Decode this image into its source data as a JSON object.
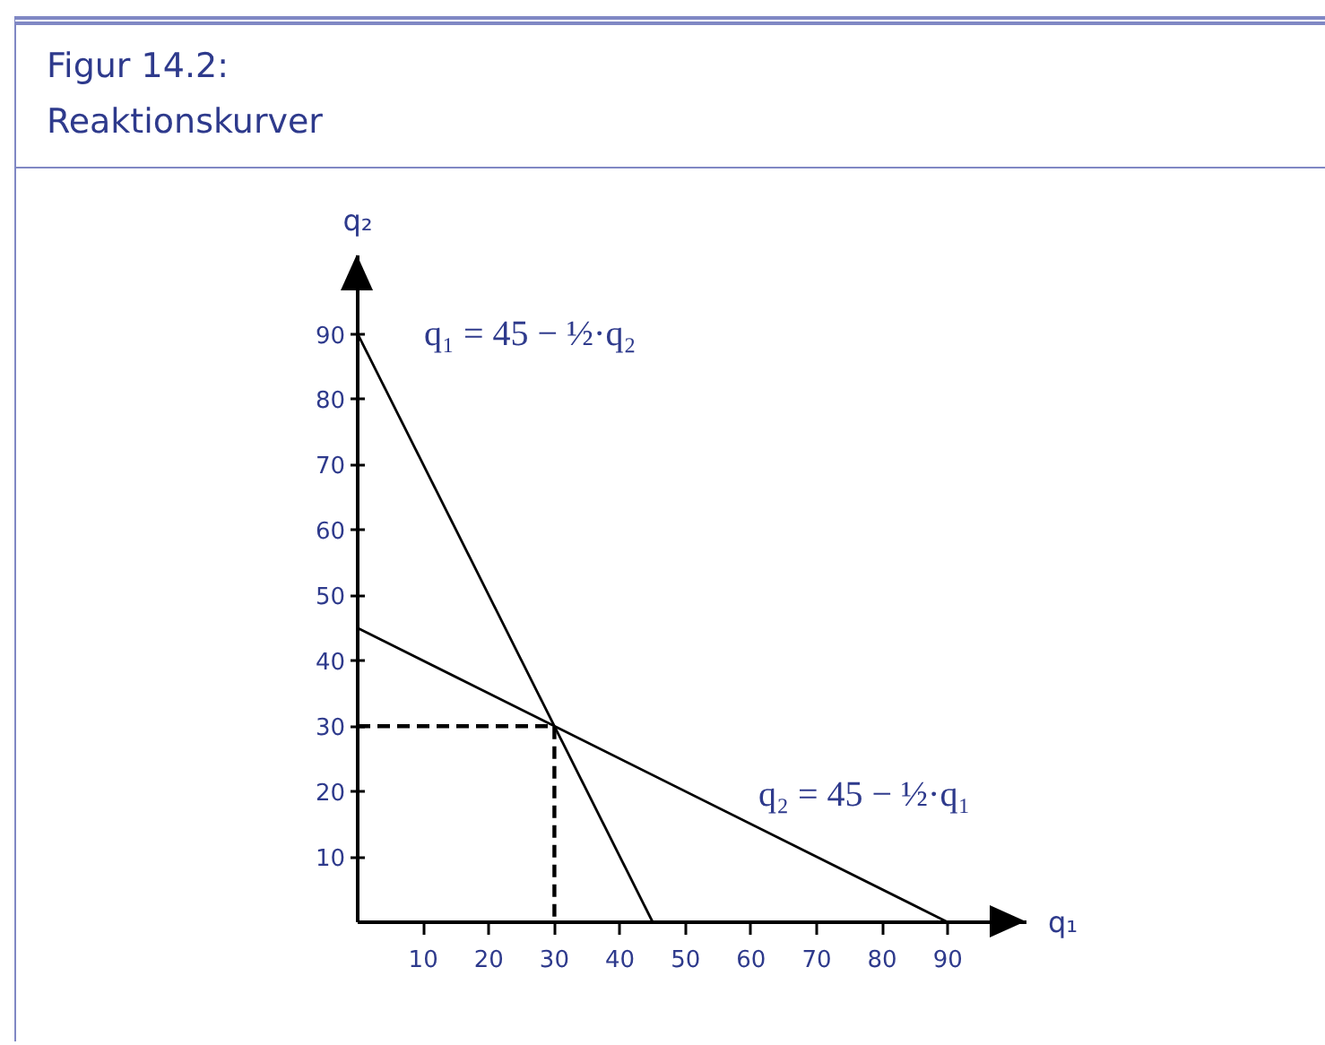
{
  "chart_data": {
    "type": "line",
    "title": "Figur 14.2:",
    "subtitle": "Reaktionskurver",
    "xlabel": "q₁",
    "ylabel": "q₂",
    "line_style": "solid",
    "series": [
      {
        "color": "#000000",
        "x": [
          0,
          45
        ],
        "values": [
          90,
          0
        ]
      },
      {
        "color": "#000000",
        "x": [
          0,
          90
        ],
        "values": [
          45,
          0
        ]
      },
      {
        "color": "#000000",
        "x": [
          0,
          30,
          30
        ],
        "values": [
          30,
          30,
          0
        ],
        "line_style": "dashed"
      }
    ],
    "xlim": [
      0,
      102
    ],
    "ylim": [
      0,
      102
    ],
    "xticks": [
      10,
      20,
      30,
      40,
      50,
      60,
      70,
      80,
      90
    ],
    "yticks": [
      10,
      20,
      30,
      40,
      50,
      60,
      70,
      80,
      90
    ],
    "annotations": [
      {
        "text": "q₁ = 45 − ½·q₂",
        "x": 0,
        "y": 90
      },
      {
        "text": "q₂ = 45 − ½·q₁",
        "x": 51,
        "y": 19.5
      }
    ]
  }
}
